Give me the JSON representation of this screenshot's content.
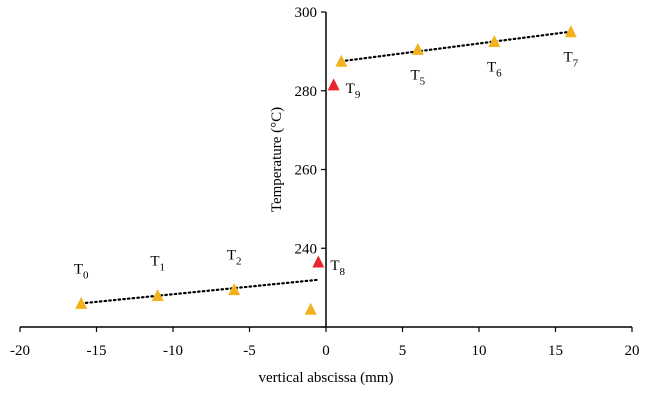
{
  "chart_data": {
    "type": "scatter",
    "xlabel": "vertical abscissa (mm)",
    "ylabel": "Temperature (°C)",
    "xlim": [
      -20,
      20
    ],
    "ylim": [
      220,
      300
    ],
    "x_ticks": [
      -20,
      -15,
      -10,
      -5,
      0,
      5,
      10,
      15,
      20
    ],
    "y_ticks": [
      220,
      240,
      260,
      280,
      300
    ],
    "y_tick_labels": [
      "",
      "240",
      "260",
      "280",
      "300"
    ],
    "colors": {
      "yellow": "#f2b21b",
      "red": "#e8262e",
      "trend": "#000000"
    },
    "points": [
      {
        "x": -16,
        "y": 226,
        "color": "yellow",
        "label": "T",
        "sub": "0",
        "label_pos": "above"
      },
      {
        "x": -11,
        "y": 228,
        "color": "yellow",
        "label": "T",
        "sub": "1",
        "label_pos": "above"
      },
      {
        "x": -6,
        "y": 229.5,
        "color": "yellow",
        "label": "T",
        "sub": "2",
        "label_pos": "above"
      },
      {
        "x": -1,
        "y": 224.5,
        "color": "yellow",
        "label": "",
        "sub": "",
        "label_pos": "none"
      },
      {
        "x": -0.5,
        "y": 236.5,
        "color": "red",
        "label": "T",
        "sub": "8",
        "label_pos": "right"
      },
      {
        "x": 0.5,
        "y": 281.5,
        "color": "red",
        "label": "T",
        "sub": "9",
        "label_pos": "right"
      },
      {
        "x": 1,
        "y": 287.5,
        "color": "yellow",
        "label": "",
        "sub": "",
        "label_pos": "none"
      },
      {
        "x": 6,
        "y": 290.5,
        "color": "yellow",
        "label": "T",
        "sub": "5",
        "label_pos": "below"
      },
      {
        "x": 11,
        "y": 292.5,
        "color": "yellow",
        "label": "T",
        "sub": "6",
        "label_pos": "below"
      },
      {
        "x": 16,
        "y": 295,
        "color": "yellow",
        "label": "T",
        "sub": "7",
        "label_pos": "below"
      }
    ],
    "trendlines": [
      {
        "x": [
          -16,
          -0.5
        ],
        "y": [
          226,
          232
        ],
        "style": "dotted"
      },
      {
        "x": [
          1,
          16
        ],
        "y": [
          287.5,
          295
        ],
        "style": "dotted"
      }
    ]
  }
}
